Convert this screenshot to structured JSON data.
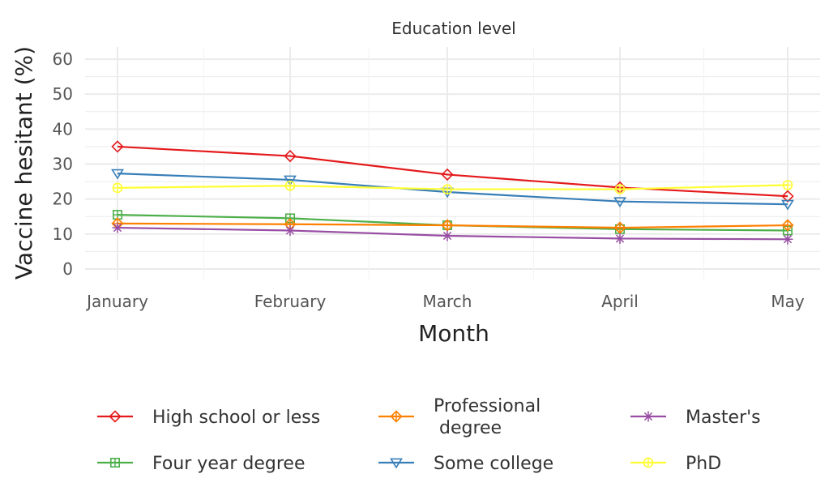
{
  "chart_data": {
    "type": "line",
    "title": "Education level",
    "xlabel": "Month",
    "ylabel": "Vaccine hesitant (%)",
    "ylim": [
      0,
      60
    ],
    "yticks": [
      0,
      10,
      20,
      30,
      40,
      50,
      60
    ],
    "grid": true,
    "legend_position": "bottom",
    "categories": [
      "January",
      "February",
      "March",
      "April",
      "May"
    ],
    "series": [
      {
        "name": "High school or less",
        "color": "#e41a1c",
        "marker": "diamond",
        "values": [
          35,
          32.3,
          27,
          23.3,
          20.8
        ]
      },
      {
        "name": "Four year degree",
        "color": "#4daf4a",
        "marker": "square-plus",
        "values": [
          15.5,
          14.5,
          12.5,
          11.4,
          11
        ]
      },
      {
        "name": "Professional\n degree",
        "color": "#ff7f00",
        "marker": "diamond-plus",
        "values": [
          13,
          12.8,
          12.5,
          11.8,
          12.5
        ]
      },
      {
        "name": "Some college",
        "color": "#377eb8",
        "marker": "triangle-down",
        "values": [
          27.3,
          25.5,
          22,
          19.3,
          18.5
        ]
      },
      {
        "name": "Master's",
        "color": "#984ea3",
        "marker": "asterisk",
        "values": [
          11.8,
          11,
          9.5,
          8.7,
          8.5
        ]
      },
      {
        "name": "PhD",
        "color": "#ffff33",
        "marker": "circle-plus",
        "values": [
          23.2,
          23.8,
          22.8,
          22.8,
          24
        ]
      }
    ]
  }
}
